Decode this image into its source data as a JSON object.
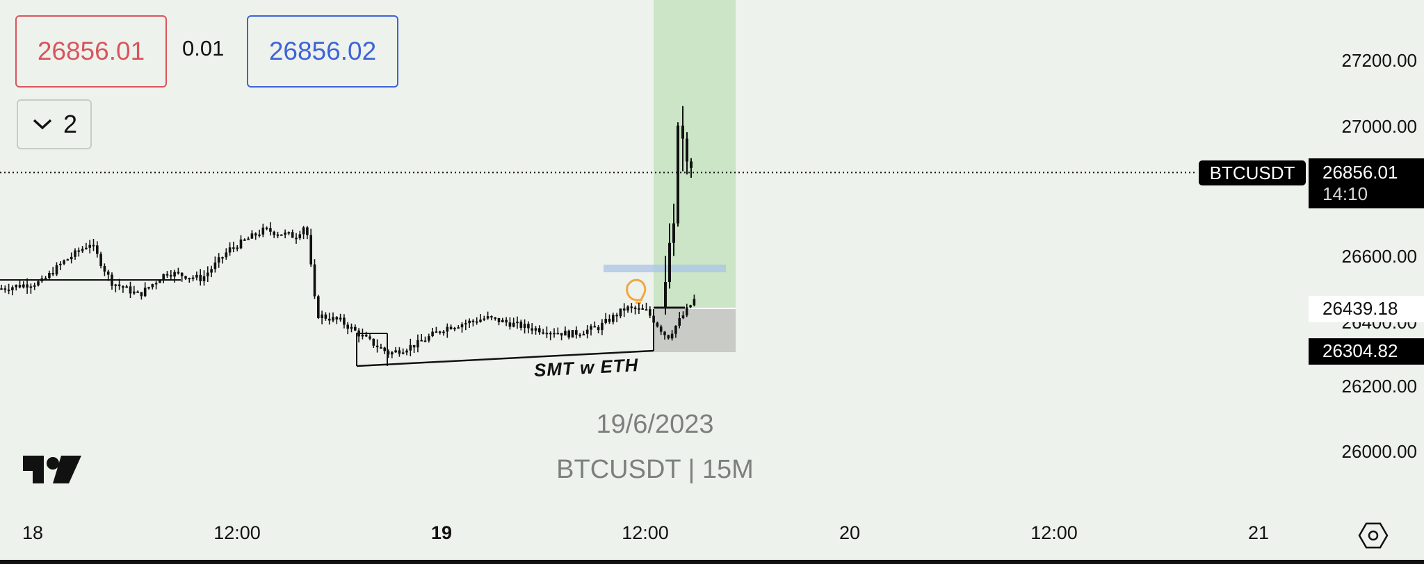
{
  "quote": {
    "sell_price": "26856.01",
    "spread": "0.01",
    "buy_price": "26856.02"
  },
  "layers": {
    "count": "2",
    "icon": "chevron-down-icon"
  },
  "price_axis": {
    "labels": [
      "27200.00",
      "27000.00",
      "26600.00",
      "26400.00",
      "26200.00",
      "26000.00"
    ],
    "current_symbol": "BTCUSDT",
    "current_price": "26856.01",
    "countdown": "14:10",
    "target_price": "26439.18",
    "stop_price": "26304.82"
  },
  "time_axis": {
    "labels": [
      "18",
      "12:00",
      "19",
      "12:00",
      "20",
      "12:00",
      "21"
    ]
  },
  "watermark": {
    "date": "19/6/2023",
    "symbol_interval": "BTCUSDT | 15M"
  },
  "annotations": {
    "smt": "SMT w ETH"
  },
  "colors": {
    "background": "#eef2ec",
    "profit_zone": "#bfe0b9",
    "loss_zone": "#c4c8c2",
    "sell": "#d9545c",
    "buy": "#3d63d8",
    "fvg": "#a9c3e8",
    "alert": "#f2a640"
  },
  "chart_data": {
    "type": "candlestick",
    "symbol": "BTCUSDT",
    "interval": "15M",
    "y_ticks": [
      26000,
      26200,
      26400,
      26600,
      27000,
      27200
    ],
    "current_price": 26856.01,
    "position": {
      "entry": 26439.18,
      "stop": 26304.82
    },
    "price_path": [
      [
        0,
        26500
      ],
      [
        60,
        26520
      ],
      [
        90,
        26580
      ],
      [
        130,
        26640
      ],
      [
        160,
        26520
      ],
      [
        200,
        26480
      ],
      [
        240,
        26550
      ],
      [
        290,
        26530
      ],
      [
        330,
        26620
      ],
      [
        380,
        26680
      ],
      [
        425,
        26660
      ],
      [
        440,
        26700
      ],
      [
        455,
        26420
      ],
      [
        490,
        26400
      ],
      [
        530,
        26340
      ],
      [
        560,
        26300
      ],
      [
        600,
        26330
      ],
      [
        640,
        26380
      ],
      [
        700,
        26410
      ],
      [
        760,
        26380
      ],
      [
        820,
        26360
      ],
      [
        860,
        26380
      ],
      [
        900,
        26440
      ],
      [
        930,
        26430
      ],
      [
        960,
        26350
      ],
      [
        990,
        26440
      ],
      [
        1000,
        26470
      ],
      [
        1010,
        26840
      ],
      [
        1030,
        27000
      ],
      [
        1040,
        26860
      ]
    ]
  }
}
